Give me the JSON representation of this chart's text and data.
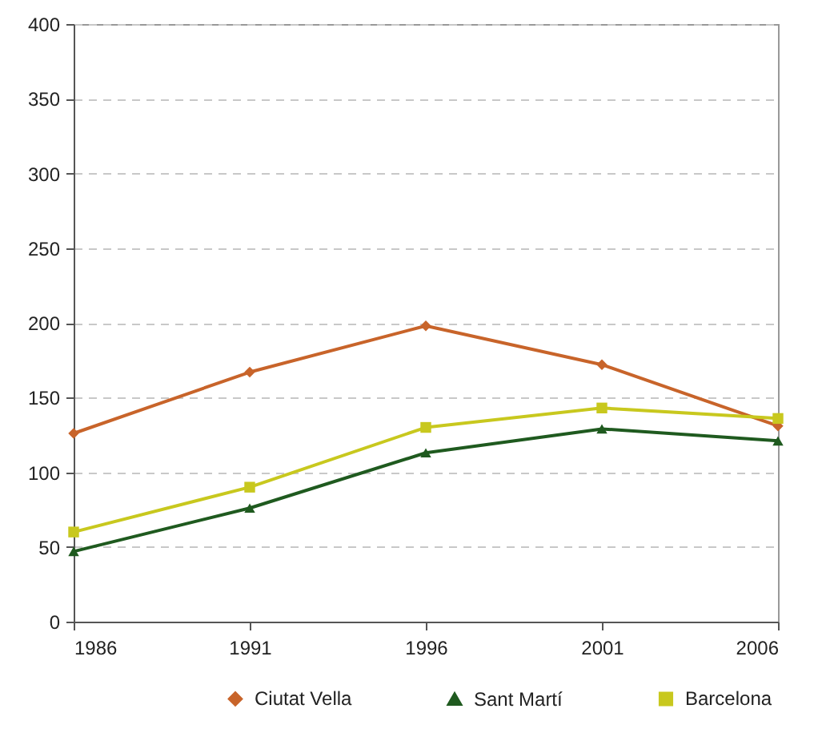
{
  "chart_data": {
    "type": "line",
    "x": [
      1986,
      1991,
      1996,
      2001,
      2006
    ],
    "xlim": [
      1986,
      2006
    ],
    "xticks": [
      1986,
      1991,
      1996,
      2001,
      2006
    ],
    "ylim": [
      0,
      400
    ],
    "yticks": [
      0,
      50,
      100,
      150,
      200,
      250,
      300,
      350,
      400
    ],
    "series": [
      {
        "name": "Ciutat Vella",
        "color": "#c8642a",
        "marker": "diamond",
        "values": [
          126,
          167,
          198,
          172,
          131
        ]
      },
      {
        "name": "Sant Martí",
        "color": "#1f5a1f",
        "marker": "triangle",
        "values": [
          47,
          76,
          113,
          129,
          121
        ]
      },
      {
        "name": "Barcelona",
        "color": "#c8c81e",
        "marker": "square",
        "values": [
          60,
          90,
          130,
          143,
          136
        ]
      }
    ],
    "grid": "y",
    "legend": "bottom",
    "line_style": "solid"
  }
}
